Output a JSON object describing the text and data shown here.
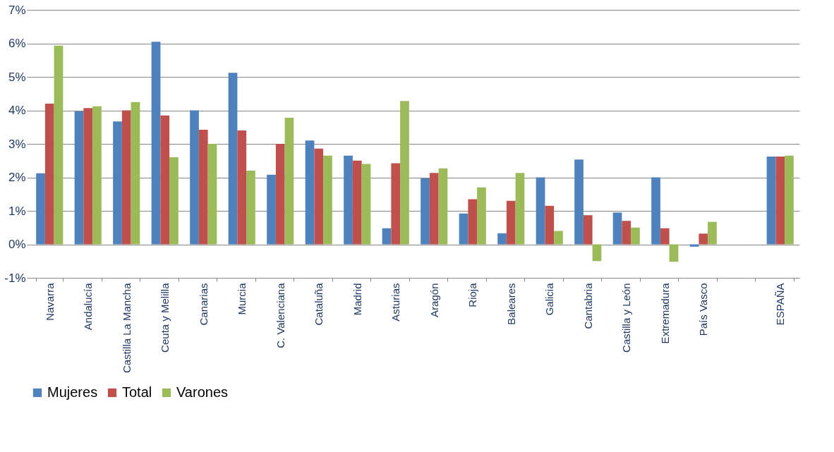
{
  "chart_data": {
    "type": "bar",
    "categories": [
      "Navarra",
      "Andalucía",
      "Castilla La Mancha",
      "Ceuta y Melilla",
      "Canarias",
      "Murcia",
      "C. Valenciana",
      "Cataluña",
      "Madrid",
      "Asturias",
      "Aragón",
      "Rioja",
      "Baleares",
      "Galicia",
      "Cantabria",
      "Castilla y León",
      "Extremadura",
      "País Vasco",
      null,
      "ESPAÑA"
    ],
    "series": [
      {
        "name": "Mujeres",
        "color": "#4f81bd",
        "values": [
          2.12,
          3.97,
          3.67,
          6.05,
          4.0,
          5.12,
          2.08,
          3.1,
          2.65,
          0.48,
          1.97,
          0.92,
          0.33,
          2.0,
          2.53,
          0.95,
          2.0,
          -0.07,
          null,
          2.62
        ]
      },
      {
        "name": "Total",
        "color": "#c0504d",
        "values": [
          4.2,
          4.07,
          4.0,
          3.85,
          3.42,
          3.4,
          3.0,
          2.86,
          2.5,
          2.42,
          2.13,
          1.35,
          1.3,
          1.15,
          0.87,
          0.7,
          0.48,
          0.32,
          null,
          2.62
        ]
      },
      {
        "name": "Varones",
        "color": "#9bbb59",
        "values": [
          5.93,
          4.12,
          4.25,
          2.6,
          3.0,
          2.2,
          3.78,
          2.65,
          2.4,
          4.28,
          2.27,
          1.7,
          2.13,
          0.4,
          -0.5,
          0.5,
          -0.52,
          0.67,
          null,
          2.65
        ]
      }
    ],
    "ylim": [
      -1,
      7
    ],
    "yticks": [
      {
        "value": -1,
        "label": "-1%"
      },
      {
        "value": 0,
        "label": "0%"
      },
      {
        "value": 1,
        "label": "1%"
      },
      {
        "value": 2,
        "label": "2%"
      },
      {
        "value": 3,
        "label": "3%"
      },
      {
        "value": 4,
        "label": "4%"
      },
      {
        "value": 5,
        "label": "5%"
      },
      {
        "value": 6,
        "label": "6%"
      },
      {
        "value": 7,
        "label": "7%"
      }
    ],
    "grid": "y",
    "legend": "bottom"
  }
}
